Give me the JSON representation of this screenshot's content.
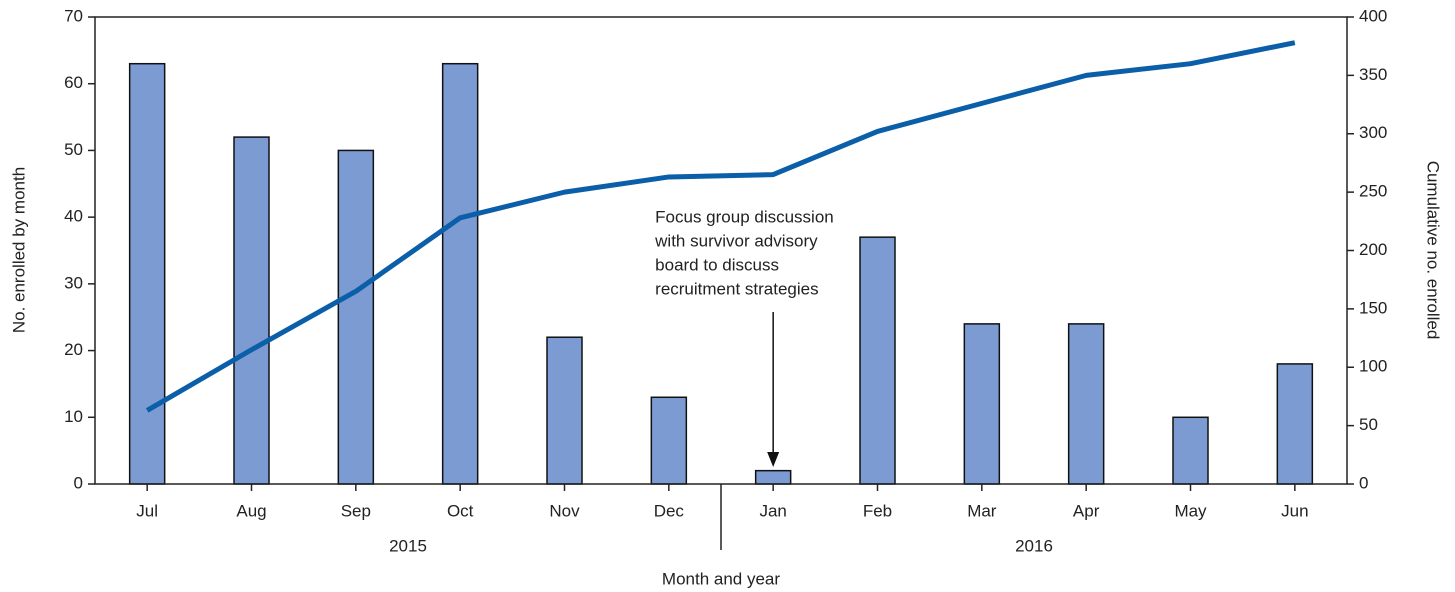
{
  "chart_data": {
    "type": "combo",
    "categories": [
      "Jul",
      "Aug",
      "Sep",
      "Oct",
      "Nov",
      "Dec",
      "Jan",
      "Feb",
      "Mar",
      "Apr",
      "May",
      "Jun"
    ],
    "year_labels": [
      "2015",
      "2016"
    ],
    "series": [
      {
        "type": "bar",
        "axis": "y",
        "color": "#7b9bd2",
        "values": [
          63,
          52,
          50,
          63,
          22,
          13,
          2,
          37,
          24,
          24,
          10,
          18
        ]
      },
      {
        "type": "line",
        "axis": "y2",
        "color": "#0a5fa8",
        "values": [
          63,
          115,
          165,
          228,
          250,
          263,
          265,
          302,
          326,
          350,
          360,
          378
        ]
      }
    ],
    "ylim": [
      0,
      70
    ],
    "yticks": [
      0,
      10,
      20,
      30,
      40,
      50,
      60,
      70
    ],
    "y2lim": [
      0,
      400
    ],
    "y2ticks": [
      0,
      50,
      100,
      150,
      200,
      250,
      300,
      350,
      400
    ],
    "y_label": "No. enrolled by month",
    "y2_label": "Cumulative no. enrolled",
    "x_label": "Month and year",
    "annotation": {
      "lines": [
        "Focus group discussion",
        "with survivor advisory",
        "board to discuss",
        "recruitment strategies"
      ],
      "category": "Jan"
    }
  }
}
